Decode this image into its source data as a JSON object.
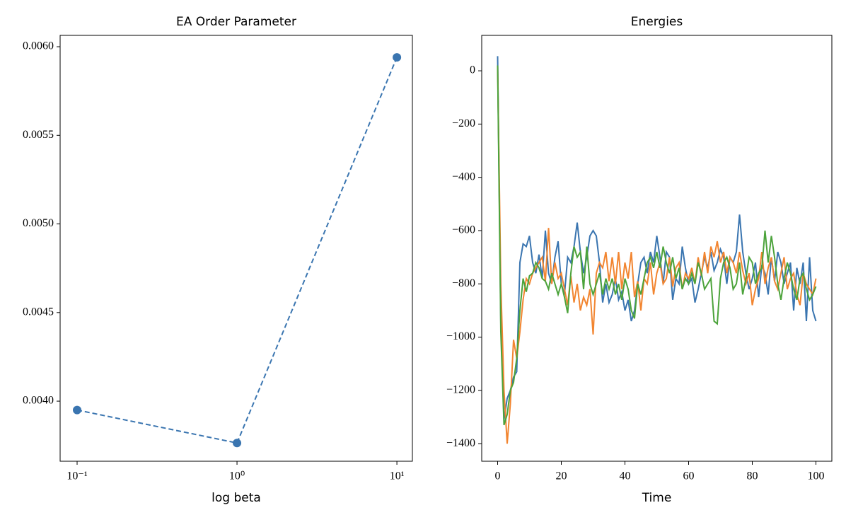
{
  "chart_data": [
    {
      "type": "line",
      "title": "EA Order Parameter",
      "x_label": "log beta",
      "xscale": "log",
      "x": [
        0.1,
        1,
        10
      ],
      "values": [
        0.00395,
        0.003764,
        0.00594
      ],
      "color": "#3a75b0",
      "linestyle": "dashed",
      "marker": "o",
      "xlim": [
        0.0783,
        12.5
      ],
      "ylim": [
        0.003661,
        0.006064
      ],
      "xticks": [
        {
          "value": 0.1,
          "label": "10⁻¹"
        },
        {
          "value": 1,
          "label": "10⁰"
        },
        {
          "value": 10,
          "label": "10¹"
        }
      ],
      "yticks": [
        {
          "value": 0.004,
          "label": "0.0040"
        },
        {
          "value": 0.0045,
          "label": "0.0045"
        },
        {
          "value": 0.005,
          "label": "0.0050"
        },
        {
          "value": 0.0055,
          "label": "0.0055"
        },
        {
          "value": 0.006,
          "label": "0.0060"
        }
      ]
    },
    {
      "type": "line",
      "title": "Energies",
      "x_label": "Time",
      "x": [
        0,
        1,
        2,
        3,
        4,
        5,
        6,
        7,
        8,
        9,
        10,
        11,
        12,
        13,
        14,
        15,
        16,
        17,
        18,
        19,
        20,
        21,
        22,
        23,
        24,
        25,
        26,
        27,
        28,
        29,
        30,
        31,
        32,
        33,
        34,
        35,
        36,
        37,
        38,
        39,
        40,
        41,
        42,
        43,
        44,
        45,
        46,
        47,
        48,
        49,
        50,
        51,
        52,
        53,
        54,
        55,
        56,
        57,
        58,
        59,
        60,
        61,
        62,
        63,
        64,
        65,
        66,
        67,
        68,
        69,
        70,
        71,
        72,
        73,
        74,
        75,
        76,
        77,
        78,
        79,
        80,
        81,
        82,
        83,
        84,
        85,
        86,
        87,
        88,
        89,
        90,
        91,
        92,
        93,
        94,
        95,
        96,
        97,
        98,
        99,
        100
      ],
      "series": [
        {
          "color": "#3a75b0",
          "values": [
            55,
            -950,
            -1310,
            -1230,
            -1200,
            -1150,
            -1130,
            -720,
            -650,
            -660,
            -620,
            -720,
            -760,
            -690,
            -780,
            -600,
            -760,
            -800,
            -700,
            -640,
            -800,
            -840,
            -700,
            -720,
            -660,
            -570,
            -680,
            -760,
            -700,
            -620,
            -600,
            -620,
            -720,
            -870,
            -800,
            -870,
            -840,
            -780,
            -860,
            -830,
            -900,
            -860,
            -940,
            -900,
            -800,
            -720,
            -700,
            -760,
            -680,
            -720,
            -620,
            -700,
            -800,
            -680,
            -700,
            -860,
            -780,
            -800,
            -660,
            -740,
            -800,
            -780,
            -870,
            -820,
            -760,
            -700,
            -740,
            -680,
            -750,
            -720,
            -670,
            -700,
            -800,
            -700,
            -720,
            -680,
            -540,
            -680,
            -760,
            -820,
            -780,
            -720,
            -850,
            -730,
            -760,
            -840,
            -700,
            -790,
            -680,
            -720,
            -800,
            -760,
            -720,
            -900,
            -740,
            -800,
            -720,
            -940,
            -700,
            -900,
            -940
          ]
        },
        {
          "color": "#f28530",
          "values": [
            20,
            -800,
            -1200,
            -1400,
            -1250,
            -1010,
            -1080,
            -980,
            -860,
            -780,
            -800,
            -760,
            -740,
            -720,
            -700,
            -790,
            -590,
            -800,
            -720,
            -780,
            -760,
            -820,
            -880,
            -770,
            -870,
            -800,
            -900,
            -850,
            -880,
            -820,
            -990,
            -760,
            -720,
            -740,
            -680,
            -790,
            -700,
            -800,
            -680,
            -820,
            -720,
            -780,
            -680,
            -850,
            -790,
            -900,
            -780,
            -800,
            -720,
            -840,
            -760,
            -720,
            -800,
            -780,
            -700,
            -810,
            -740,
            -720,
            -820,
            -760,
            -780,
            -740,
            -800,
            -700,
            -770,
            -680,
            -760,
            -660,
            -700,
            -640,
            -720,
            -680,
            -760,
            -700,
            -720,
            -760,
            -680,
            -750,
            -800,
            -760,
            -880,
            -820,
            -780,
            -680,
            -800,
            -740,
            -700,
            -790,
            -820,
            -760,
            -700,
            -820,
            -780,
            -760,
            -840,
            -880,
            -760,
            -800,
            -820,
            -840,
            -780
          ]
        },
        {
          "color": "#4ca33b",
          "values": [
            20,
            -980,
            -1330,
            -1290,
            -1200,
            -1170,
            -1080,
            -900,
            -780,
            -830,
            -770,
            -760,
            -720,
            -740,
            -780,
            -790,
            -820,
            -760,
            -800,
            -840,
            -800,
            -850,
            -910,
            -760,
            -660,
            -700,
            -680,
            -820,
            -660,
            -800,
            -840,
            -800,
            -760,
            -840,
            -780,
            -820,
            -780,
            -840,
            -800,
            -860,
            -780,
            -820,
            -900,
            -930,
            -800,
            -840,
            -780,
            -720,
            -700,
            -740,
            -680,
            -740,
            -660,
            -720,
            -760,
            -700,
            -780,
            -740,
            -820,
            -780,
            -800,
            -760,
            -800,
            -720,
            -760,
            -820,
            -800,
            -780,
            -940,
            -950,
            -780,
            -720,
            -700,
            -740,
            -820,
            -800,
            -720,
            -840,
            -780,
            -700,
            -720,
            -800,
            -760,
            -740,
            -600,
            -720,
            -620,
            -700,
            -800,
            -860,
            -780,
            -720,
            -760,
            -820,
            -860,
            -780,
            -760,
            -820,
            -860,
            -840,
            -810
          ]
        }
      ],
      "xlim": [
        -5,
        105
      ],
      "ylim": [
        -1466,
        133
      ],
      "xticks": [
        0,
        20,
        40,
        60,
        80,
        100
      ],
      "yticks": [
        {
          "value": -1400,
          "label": "−1400"
        },
        {
          "value": -1200,
          "label": "−1200"
        },
        {
          "value": -1000,
          "label": "−1000"
        },
        {
          "value": -800,
          "label": "−800"
        },
        {
          "value": -600,
          "label": "−600"
        },
        {
          "value": -400,
          "label": "−400"
        },
        {
          "value": -200,
          "label": "−200"
        },
        {
          "value": 0,
          "label": "0"
        }
      ]
    }
  ]
}
